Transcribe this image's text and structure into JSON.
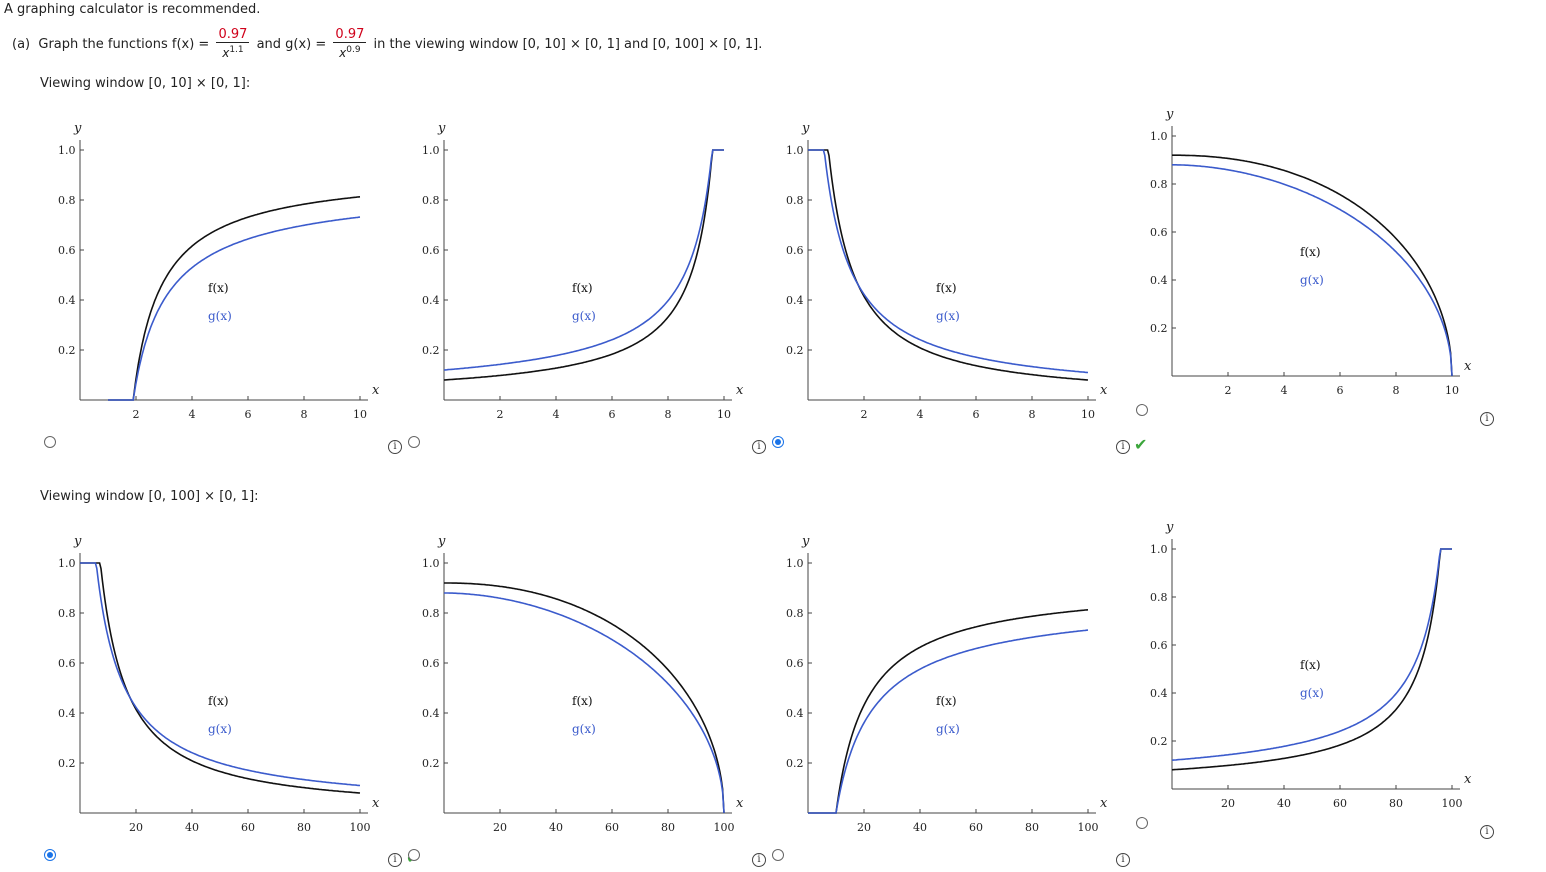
{
  "intro": "A graphing calculator is recommended.",
  "prompt": {
    "part_label": "(a)",
    "text1": "Graph the functions f(x) =",
    "f_num": "0.97",
    "f_den_base": "x",
    "f_den_exp": "1.1",
    "text2": "and g(x) =",
    "g_num": "0.97",
    "g_den_base": "x",
    "g_den_exp": "0.9",
    "text3": "in the viewing window [0, 10] × [0, 1] and [0, 100] × [0, 1]."
  },
  "windows": [
    {
      "label": "Viewing window [0, 10] × [0, 1]:",
      "xticks": [
        "2",
        "4",
        "6",
        "8",
        "10"
      ]
    },
    {
      "label": "Viewing window [0, 100] × [0, 1]:",
      "xticks": [
        "20",
        "40",
        "60",
        "80",
        "100"
      ]
    }
  ],
  "yticks": [
    "0.2",
    "0.4",
    "0.6",
    "0.8",
    "1.0"
  ],
  "axis_x": "x",
  "axis_y": "y",
  "legend_f": "f(x)",
  "legend_g": "g(x)",
  "colors": {
    "f": "#111111",
    "g": "#3b5bcc",
    "check": "#3ca63c",
    "radio": "#1a73e8"
  },
  "rows": [
    {
      "options": [
        {
          "shape": "rising-concave",
          "selected": false,
          "correct": false
        },
        {
          "shape": "rising-asymptote",
          "selected": false,
          "correct": false
        },
        {
          "shape": "decreasing",
          "selected": true,
          "correct": true
        },
        {
          "shape": "falling-concave",
          "selected": false,
          "correct": false
        }
      ]
    },
    {
      "options": [
        {
          "shape": "decreasing",
          "selected": true,
          "correct": true
        },
        {
          "shape": "falling-concave",
          "selected": false,
          "correct": false
        },
        {
          "shape": "rising-concave",
          "selected": false,
          "correct": false
        },
        {
          "shape": "rising-asymptote",
          "selected": false,
          "correct": false
        }
      ]
    }
  ]
}
